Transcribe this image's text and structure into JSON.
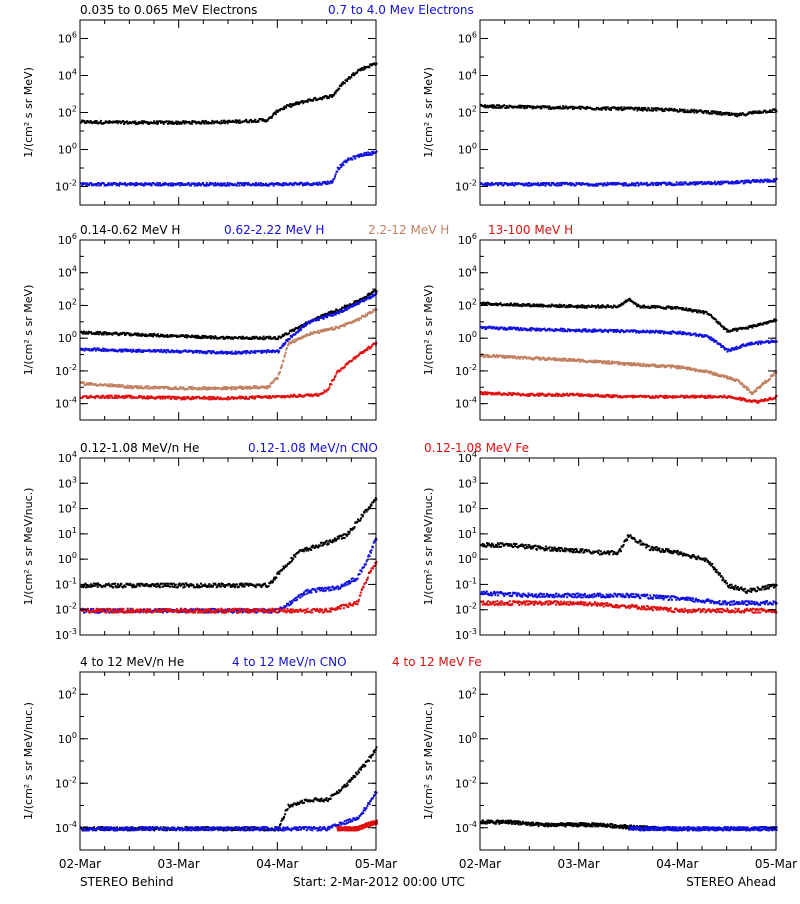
{
  "colors": {
    "black": "#000000",
    "blue": "#1010e0",
    "tan": "#c08060",
    "red": "#e01010"
  },
  "rows": [
    {
      "ylabel": "1/(cm² s sr MeV)",
      "legend": [
        {
          "text": "0.035 to 0.065 MeV Electrons",
          "color": "#000000"
        },
        {
          "text": "0.7 to 4.0 Mev Electrons",
          "color": "#1010e0"
        }
      ]
    },
    {
      "ylabel": "1/(cm² s sr MeV)",
      "legend": [
        {
          "text": "0.14-0.62 MeV H",
          "color": "#000000"
        },
        {
          "text": "0.62-2.22 MeV H",
          "color": "#1010e0"
        },
        {
          "text": "2.2-12 MeV H",
          "color": "#c08060"
        },
        {
          "text": "13-100 MeV H",
          "color": "#e01010"
        }
      ]
    },
    {
      "ylabel": "1/(cm² s sr MeV/nuc.)",
      "legend": [
        {
          "text": "0.12-1.08 MeV/n He",
          "color": "#000000"
        },
        {
          "text": "0.12-1.08 MeV/n CNO",
          "color": "#1010e0"
        },
        {
          "text": "0.12-1.08 MeV Fe",
          "color": "#e01010"
        }
      ]
    },
    {
      "ylabel": "1/(cm² s sr MeV/nuc.)",
      "legend": [
        {
          "text": "4 to 12 MeV/n He",
          "color": "#000000"
        },
        {
          "text": "4 to 12 MeV/n CNO",
          "color": "#1010e0"
        },
        {
          "text": "4 to 12 MeV Fe",
          "color": "#e01010"
        }
      ]
    }
  ],
  "x_tick_labels": [
    "02-Mar",
    "03-Mar",
    "04-Mar",
    "05-Mar"
  ],
  "footer": {
    "left": "STEREO Behind",
    "center": "Start:  2-Mar-2012 00:00 UTC",
    "right": "STEREO Ahead"
  },
  "chart_data": [
    {
      "panel": "electrons-behind",
      "type": "scatter",
      "yscale": "log",
      "ylim": [
        0.001,
        10000000
      ],
      "y_ticks": [
        "10^-2",
        "10^0",
        "10^2",
        "10^4",
        "10^6"
      ],
      "xlim": [
        0,
        3
      ],
      "series": [
        {
          "color": "#000000",
          "x": [
            0,
            0.5,
            1,
            1.5,
            1.9,
            2.0,
            2.1,
            2.3,
            2.55,
            2.65,
            2.8,
            3.0
          ],
          "y": [
            35,
            32,
            32,
            35,
            45,
            150,
            250,
            500,
            900,
            4000,
            20000,
            55000
          ]
        },
        {
          "color": "#1010e0",
          "x": [
            0,
            0.5,
            1,
            1.5,
            2.0,
            2.4,
            2.55,
            2.6,
            2.7,
            2.85,
            3.0
          ],
          "y": [
            0.015,
            0.015,
            0.015,
            0.015,
            0.015,
            0.016,
            0.02,
            0.1,
            0.3,
            0.6,
            0.8
          ]
        }
      ]
    },
    {
      "panel": "electrons-ahead",
      "type": "scatter",
      "yscale": "log",
      "ylim": [
        0.001,
        10000000
      ],
      "y_ticks": [
        "10^-2",
        "10^0",
        "10^2",
        "10^4",
        "10^6"
      ],
      "xlim": [
        0,
        3
      ],
      "series": [
        {
          "color": "#000000",
          "x": [
            0,
            0.5,
            1,
            1.5,
            2.0,
            2.3,
            2.6,
            2.8,
            3.0
          ],
          "y": [
            250,
            220,
            200,
            180,
            150,
            120,
            80,
            120,
            150
          ]
        },
        {
          "color": "#1010e0",
          "x": [
            0,
            0.5,
            1,
            1.5,
            2.0,
            2.5,
            3.0
          ],
          "y": [
            0.015,
            0.015,
            0.015,
            0.015,
            0.016,
            0.018,
            0.025
          ]
        }
      ]
    },
    {
      "panel": "protons-behind",
      "type": "scatter",
      "yscale": "log",
      "ylim": [
        1e-05,
        1000000
      ],
      "y_ticks": [
        "10^-4",
        "10^-2",
        "10^0",
        "10^2",
        "10^4",
        "10^6"
      ],
      "xlim": [
        0,
        3
      ],
      "series": [
        {
          "color": "#000000",
          "x": [
            0,
            0.5,
            1,
            1.5,
            2.0,
            2.2,
            2.4,
            2.6,
            2.8,
            3.0
          ],
          "y": [
            2.5,
            2,
            1.5,
            1.2,
            1.2,
            5,
            20,
            60,
            200,
            1000
          ]
        },
        {
          "color": "#1010e0",
          "x": [
            0,
            0.5,
            1,
            1.5,
            2.0,
            2.1,
            2.3,
            2.6,
            2.8,
            3.0
          ],
          "y": [
            0.25,
            0.2,
            0.18,
            0.15,
            0.18,
            1,
            10,
            40,
            150,
            600
          ]
        },
        {
          "color": "#c08060",
          "x": [
            0,
            0.5,
            1,
            1.5,
            1.9,
            2.0,
            2.1,
            2.3,
            2.6,
            2.8,
            3.0
          ],
          "y": [
            0.002,
            0.0012,
            0.001,
            0.001,
            0.0012,
            0.005,
            0.5,
            2,
            5,
            15,
            70
          ]
        },
        {
          "color": "#e01010",
          "x": [
            0,
            0.5,
            1,
            1.5,
            2.0,
            2.4,
            2.5,
            2.6,
            2.8,
            3.0
          ],
          "y": [
            0.0003,
            0.0003,
            0.00025,
            0.00025,
            0.0003,
            0.0004,
            0.0008,
            0.01,
            0.1,
            0.6
          ]
        }
      ]
    },
    {
      "panel": "protons-ahead",
      "type": "scatter",
      "yscale": "log",
      "ylim": [
        1e-05,
        1000000
      ],
      "y_ticks": [
        "10^-4",
        "10^-2",
        "10^0",
        "10^2",
        "10^4",
        "10^6"
      ],
      "xlim": [
        0,
        3
      ],
      "series": [
        {
          "color": "#000000",
          "x": [
            0,
            0.5,
            1,
            1.4,
            1.5,
            1.6,
            2.0,
            2.3,
            2.5,
            2.7,
            3.0
          ],
          "y": [
            150,
            120,
            100,
            100,
            300,
            100,
            80,
            40,
            3,
            5,
            15
          ]
        },
        {
          "color": "#1010e0",
          "x": [
            0,
            0.5,
            1,
            1.5,
            2.0,
            2.3,
            2.5,
            2.7,
            3.0
          ],
          "y": [
            5,
            4,
            3.5,
            3,
            2.5,
            1.5,
            0.2,
            0.5,
            0.8
          ]
        },
        {
          "color": "#c08060",
          "x": [
            0,
            0.5,
            1,
            1.5,
            2.0,
            2.3,
            2.6,
            2.75,
            3.0
          ],
          "y": [
            0.1,
            0.07,
            0.05,
            0.03,
            0.02,
            0.01,
            0.003,
            0.0005,
            0.01
          ]
        },
        {
          "color": "#e01010",
          "x": [
            0,
            0.5,
            1,
            1.5,
            2.0,
            2.5,
            2.8,
            3.0
          ],
          "y": [
            0.0005,
            0.0004,
            0.0004,
            0.0003,
            0.0003,
            0.0003,
            0.00015,
            0.0003
          ]
        }
      ]
    },
    {
      "panel": "ions-low-behind",
      "type": "scatter",
      "yscale": "log",
      "ylim": [
        0.001,
        10000
      ],
      "y_ticks": [
        "10^-3",
        "10^-2",
        "10^-1",
        "10^0",
        "10^1",
        "10^2",
        "10^3",
        "10^4"
      ],
      "xlim": [
        0,
        3
      ],
      "series": [
        {
          "color": "#000000",
          "x": [
            0,
            0.5,
            1,
            1.5,
            1.9,
            2.0,
            2.2,
            2.5,
            2.7,
            2.9,
            3.0
          ],
          "y": [
            0.1,
            0.1,
            0.1,
            0.1,
            0.1,
            0.3,
            2,
            5,
            10,
            100,
            300
          ]
        },
        {
          "color": "#1010e0",
          "x": [
            0,
            0.5,
            1,
            1.5,
            2.0,
            2.3,
            2.6,
            2.8,
            2.9,
            3.0
          ],
          "y": [
            0.01,
            0.01,
            0.01,
            0.01,
            0.01,
            0.06,
            0.08,
            0.2,
            1,
            8
          ]
        },
        {
          "color": "#e01010",
          "x": [
            0,
            0.5,
            1,
            1.5,
            2.0,
            2.5,
            2.8,
            2.9,
            3.0
          ],
          "y": [
            0.01,
            0.01,
            0.01,
            0.01,
            0.01,
            0.01,
            0.02,
            0.2,
            1
          ]
        }
      ]
    },
    {
      "panel": "ions-low-ahead",
      "type": "scatter",
      "yscale": "log",
      "ylim": [
        0.001,
        10000
      ],
      "y_ticks": [
        "10^-3",
        "10^-2",
        "10^-1",
        "10^0",
        "10^1",
        "10^2",
        "10^3",
        "10^4"
      ],
      "xlim": [
        0,
        3
      ],
      "series": [
        {
          "color": "#000000",
          "x": [
            0,
            0.3,
            0.6,
            0.9,
            1.2,
            1.4,
            1.5,
            1.7,
            2.0,
            2.3,
            2.5,
            2.7,
            3.0
          ],
          "y": [
            4,
            4,
            3,
            2.5,
            2,
            2,
            10,
            3,
            2,
            1,
            0.1,
            0.06,
            0.1
          ]
        },
        {
          "color": "#1010e0",
          "x": [
            0,
            0.5,
            1,
            1.5,
            2.0,
            2.5,
            3.0
          ],
          "y": [
            0.05,
            0.04,
            0.04,
            0.04,
            0.03,
            0.02,
            0.02
          ]
        },
        {
          "color": "#e01010",
          "x": [
            0,
            0.5,
            1,
            1.5,
            2.0,
            2.5,
            3.0
          ],
          "y": [
            0.02,
            0.02,
            0.02,
            0.015,
            0.01,
            0.01,
            0.01
          ]
        }
      ]
    },
    {
      "panel": "ions-high-behind",
      "type": "scatter",
      "yscale": "log",
      "ylim": [
        1e-05,
        1000
      ],
      "y_ticks": [
        "10^-4",
        "10^-2",
        "10^0",
        "10^2"
      ],
      "xlim": [
        0,
        3
      ],
      "series": [
        {
          "color": "#000000",
          "x": [
            0,
            0.5,
            1,
            1.5,
            2.0,
            2.1,
            2.3,
            2.5,
            2.7,
            2.9,
            3.0
          ],
          "y": [
            0.0001,
            0.0001,
            0.0001,
            0.0001,
            0.0001,
            0.001,
            0.002,
            0.002,
            0.01,
            0.1,
            0.5
          ]
        },
        {
          "color": "#1010e0",
          "x": [
            0,
            0.5,
            1,
            1.5,
            2.0,
            2.5,
            2.8,
            2.9,
            3.0
          ],
          "y": [
            0.0001,
            0.0001,
            0.0001,
            0.0001,
            0.0001,
            0.0001,
            0.0003,
            0.001,
            0.005
          ]
        },
        {
          "color": "#e01010",
          "x": [
            2.6,
            2.8,
            2.9,
            3.0
          ],
          "y": [
            0.0001,
            0.0001,
            0.00015,
            0.0002
          ]
        }
      ]
    },
    {
      "panel": "ions-high-ahead",
      "type": "scatter",
      "yscale": "log",
      "ylim": [
        1e-05,
        1000
      ],
      "y_ticks": [
        "10^-4",
        "10^-2",
        "10^0",
        "10^2"
      ],
      "xlim": [
        0,
        3
      ],
      "series": [
        {
          "color": "#000000",
          "x": [
            0,
            0.3,
            0.6,
            0.9,
            1.2,
            1.5,
            1.8
          ],
          "y": [
            0.0002,
            0.0002,
            0.00015,
            0.00015,
            0.00015,
            0.00012,
            0.0001
          ]
        },
        {
          "color": "#1010e0",
          "x": [
            1.5,
            2.0,
            2.5,
            3.0
          ],
          "y": [
            0.0001,
            0.0001,
            0.0001,
            0.0001
          ]
        }
      ]
    }
  ]
}
